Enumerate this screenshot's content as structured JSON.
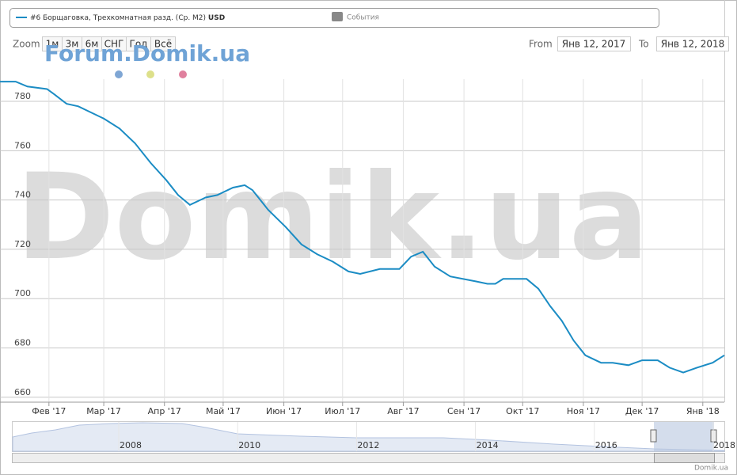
{
  "chart_data": {
    "type": "line",
    "legend": {
      "series_name": "#6 Борщаговка, Трехкомнатная разд. (Ср. М2)",
      "unit": "USD",
      "events": "События"
    },
    "zoom": {
      "label": "Zoom",
      "buttons": [
        "1м",
        "3м",
        "6м",
        "СНГ",
        "Год",
        "Всё"
      ]
    },
    "range": {
      "from_label": "From",
      "from": "Янв 12, 2017",
      "to_label": "To",
      "to": "Янв 12, 2018"
    },
    "watermarks": [
      "Forum.Domik.ua",
      "Domik.ua"
    ],
    "credit": "Domik.ua",
    "navigator_years": [
      "2008",
      "2010",
      "2012",
      "2014",
      "2016",
      "2018"
    ],
    "x": [
      -5,
      3,
      9,
      19,
      22.5,
      29,
      35,
      48,
      56,
      64,
      72,
      80,
      86,
      92,
      100,
      106,
      114,
      120,
      124,
      132,
      141,
      149,
      157,
      165,
      173,
      179,
      189,
      199,
      205,
      211,
      217,
      225,
      238,
      244,
      248,
      252,
      264,
      270,
      276,
      282,
      288,
      294,
      302,
      308,
      316,
      323,
      331,
      337,
      344,
      351,
      359,
      365
    ],
    "series": [
      {
        "name": "#6 Борщаговка, Трехкомнатная разд. (Ср. М2)",
        "color": "#1b8cc4",
        "values": [
          788,
          788,
          786,
          785,
          783,
          779,
          778,
          773,
          769,
          763,
          755,
          748,
          742,
          738,
          741,
          742,
          745,
          746,
          744,
          736,
          729,
          722,
          718,
          715,
          711,
          710,
          712,
          712,
          717,
          719,
          713,
          709,
          707,
          706,
          706,
          708,
          708,
          704,
          697,
          691,
          683,
          677,
          674,
          674,
          673,
          675,
          675,
          672,
          670,
          672,
          674,
          677
        ]
      }
    ],
    "xlim": [
      -5,
      365
    ],
    "xticks": [
      {
        "value": 20,
        "label": "Фев '17"
      },
      {
        "value": 48,
        "label": "Мар '17"
      },
      {
        "value": 79,
        "label": "Апр '17"
      },
      {
        "value": 109,
        "label": "Май '17"
      },
      {
        "value": 140,
        "label": "Июн '17"
      },
      {
        "value": 170,
        "label": "Июл '17"
      },
      {
        "value": 201,
        "label": "Авг '17"
      },
      {
        "value": 232,
        "label": "Сен '17"
      },
      {
        "value": 262,
        "label": "Окт '17"
      },
      {
        "value": 293,
        "label": "Ноя '17"
      },
      {
        "value": 323,
        "label": "Дек '17"
      },
      {
        "value": 354,
        "label": "Янв '18"
      }
    ],
    "ylim": [
      658,
      789
    ],
    "yticks": [
      660,
      680,
      700,
      720,
      740,
      760,
      780
    ],
    "grid": true
  }
}
